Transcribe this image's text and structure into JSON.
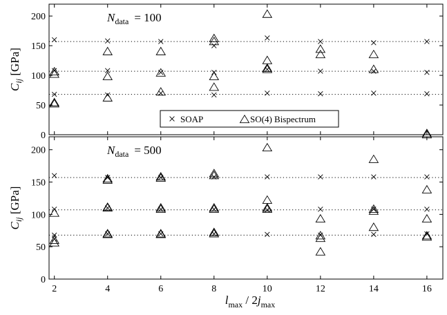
{
  "chart_data": [
    {
      "type": "scatter",
      "annotation": {
        "main": "N",
        "sub": "data",
        "rest": "= 100"
      },
      "ylabel": {
        "main": "C",
        "sub": "ij",
        "rest": " [GPa]"
      },
      "xlim": [
        1.8,
        16.6
      ],
      "ylim": [
        0,
        220
      ],
      "yticks": [
        0,
        50,
        100,
        150,
        200
      ],
      "xticks": [
        2,
        4,
        6,
        8,
        10,
        12,
        14,
        16
      ],
      "reference_lines": [
        157,
        107,
        68
      ],
      "legend": {
        "placement": "lower-center",
        "entries": [
          "SOAP",
          "SO(4) Bispectrum"
        ]
      },
      "series": [
        {
          "name": "SOAP",
          "marker": "x",
          "points": [
            [
              2,
              160
            ],
            [
              2,
              108
            ],
            [
              2,
              68
            ],
            [
              4,
              158
            ],
            [
              4,
              108
            ],
            [
              4,
              67
            ],
            [
              6,
              157
            ],
            [
              6,
              105
            ],
            [
              6,
              70
            ],
            [
              8,
              150
            ],
            [
              8,
              105
            ],
            [
              8,
              67
            ],
            [
              10,
              163
            ],
            [
              10,
              110
            ],
            [
              10,
              70
            ],
            [
              12,
              157
            ],
            [
              12,
              107
            ],
            [
              12,
              69
            ],
            [
              14,
              155
            ],
            [
              14,
              107
            ],
            [
              14,
              70
            ],
            [
              16,
              157
            ],
            [
              16,
              105
            ],
            [
              16,
              69
            ]
          ]
        },
        {
          "name": "SO(4) Bispectrum",
          "marker": "triangle",
          "points": [
            [
              2,
              106
            ],
            [
              2,
              102
            ],
            [
              2,
              54
            ],
            [
              2,
              52
            ],
            [
              4,
              140
            ],
            [
              4,
              98
            ],
            [
              4,
              62
            ],
            [
              6,
              140
            ],
            [
              6,
              104
            ],
            [
              6,
              72
            ],
            [
              8,
              162
            ],
            [
              8,
              157
            ],
            [
              8,
              98
            ],
            [
              8,
              80
            ],
            [
              10,
              203
            ],
            [
              10,
              125
            ],
            [
              10,
              112
            ],
            [
              10,
              110
            ],
            [
              12,
              144
            ],
            [
              12,
              135
            ],
            [
              14,
              135
            ],
            [
              14,
              110
            ],
            [
              16,
              2
            ],
            [
              16,
              0
            ]
          ]
        }
      ]
    },
    {
      "type": "scatter",
      "annotation": {
        "main": "N",
        "sub": "data",
        "rest": "= 500"
      },
      "ylabel": {
        "main": "C",
        "sub": "ij",
        "rest": " [GPa]"
      },
      "xlabel": {
        "a": "l",
        "a_sub": "max",
        "mid": " / 2",
        "b": "j",
        "b_sub": "max"
      },
      "xlim": [
        1.8,
        16.6
      ],
      "ylim": [
        0,
        220
      ],
      "yticks": [
        0,
        50,
        100,
        150,
        200
      ],
      "xticks": [
        2,
        4,
        6,
        8,
        10,
        12,
        14,
        16
      ],
      "reference_lines": [
        157,
        107,
        68
      ],
      "series": [
        {
          "name": "SOAP",
          "marker": "x",
          "points": [
            [
              2,
              160
            ],
            [
              2,
              108
            ],
            [
              2,
              68
            ],
            [
              2,
              62
            ],
            [
              4,
              157
            ],
            [
              4,
              110
            ],
            [
              4,
              70
            ],
            [
              6,
              157
            ],
            [
              6,
              108
            ],
            [
              6,
              70
            ],
            [
              8,
              158
            ],
            [
              8,
              108
            ],
            [
              8,
              70
            ],
            [
              10,
              158
            ],
            [
              10,
              107
            ],
            [
              10,
              69
            ],
            [
              12,
              158
            ],
            [
              12,
              108
            ],
            [
              12,
              68
            ],
            [
              14,
              158
            ],
            [
              14,
              108
            ],
            [
              14,
              69
            ],
            [
              16,
              158
            ],
            [
              16,
              108
            ],
            [
              16,
              70
            ]
          ]
        },
        {
          "name": "SO(4) Bispectrum",
          "marker": "triangle",
          "points": [
            [
              2,
              102
            ],
            [
              2,
              60
            ],
            [
              2,
              56
            ],
            [
              4,
              155
            ],
            [
              4,
              153
            ],
            [
              4,
              111
            ],
            [
              4,
              110
            ],
            [
              4,
              70
            ],
            [
              4,
              69
            ],
            [
              6,
              158
            ],
            [
              6,
              156
            ],
            [
              6,
              110
            ],
            [
              6,
              108
            ],
            [
              6,
              70
            ],
            [
              6,
              69
            ],
            [
              8,
              163
            ],
            [
              8,
              160
            ],
            [
              8,
              110
            ],
            [
              8,
              108
            ],
            [
              8,
              72
            ],
            [
              8,
              70
            ],
            [
              10,
              203
            ],
            [
              10,
              122
            ],
            [
              10,
              110
            ],
            [
              10,
              108
            ],
            [
              12,
              93
            ],
            [
              12,
              67
            ],
            [
              12,
              63
            ],
            [
              12,
              42
            ],
            [
              14,
              185
            ],
            [
              14,
              108
            ],
            [
              14,
              105
            ],
            [
              14,
              80
            ],
            [
              16,
              138
            ],
            [
              16,
              93
            ],
            [
              16,
              67
            ],
            [
              16,
              65
            ]
          ]
        }
      ]
    }
  ]
}
